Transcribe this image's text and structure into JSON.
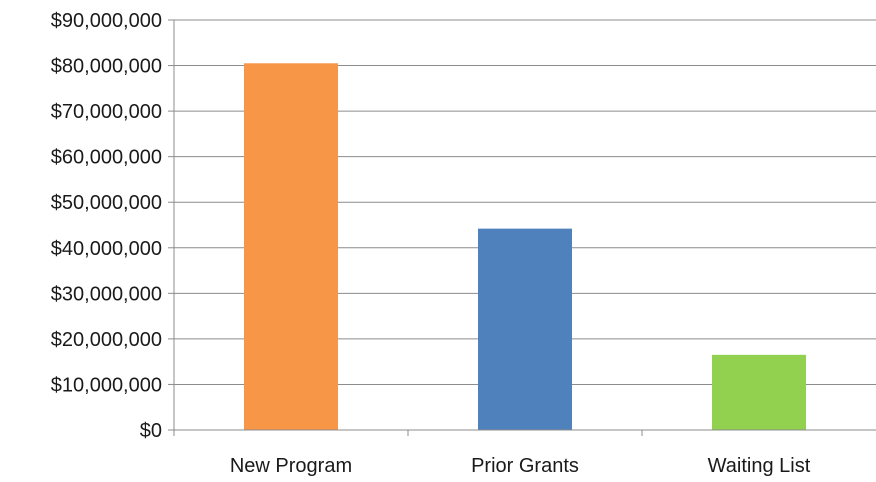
{
  "chart_data": {
    "type": "bar",
    "title": "",
    "xlabel": "",
    "ylabel": "",
    "categories": [
      "New Program",
      "Prior Grants",
      "Waiting List"
    ],
    "values": [
      80500000,
      44200000,
      16500000
    ],
    "colors": [
      "#F79646",
      "#4F81BD",
      "#92D050"
    ],
    "ylim": [
      0,
      90000000
    ],
    "yticks": [
      0,
      10000000,
      20000000,
      30000000,
      40000000,
      50000000,
      60000000,
      70000000,
      80000000,
      90000000
    ],
    "ytick_labels": [
      "$0",
      "$10,000,000",
      "$20,000,000",
      "$30,000,000",
      "$40,000,000",
      "$50,000,000",
      "$60,000,000",
      "$70,000,000",
      "$80,000,000",
      "$90,000,000"
    ],
    "grid": true,
    "legend": "none"
  }
}
